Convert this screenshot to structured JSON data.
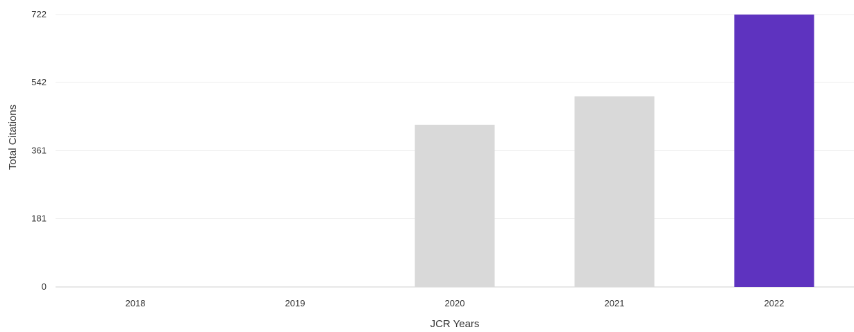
{
  "chart_data": {
    "type": "bar",
    "categories": [
      "2018",
      "2019",
      "2020",
      "2021",
      "2022"
    ],
    "values": [
      0,
      0,
      430,
      505,
      722
    ],
    "xlabel": "JCR Years",
    "ylabel": "Total Citations",
    "ylim": [
      0,
      722
    ],
    "yticks": [
      "0",
      "181",
      "361",
      "542",
      "722"
    ],
    "ytick_values": [
      0,
      181,
      361,
      542,
      722
    ],
    "grid": true,
    "highlight_category": "2022",
    "colors": {
      "default_bar": "#d9d9d9",
      "highlight_bar": "#5e33bf"
    }
  }
}
